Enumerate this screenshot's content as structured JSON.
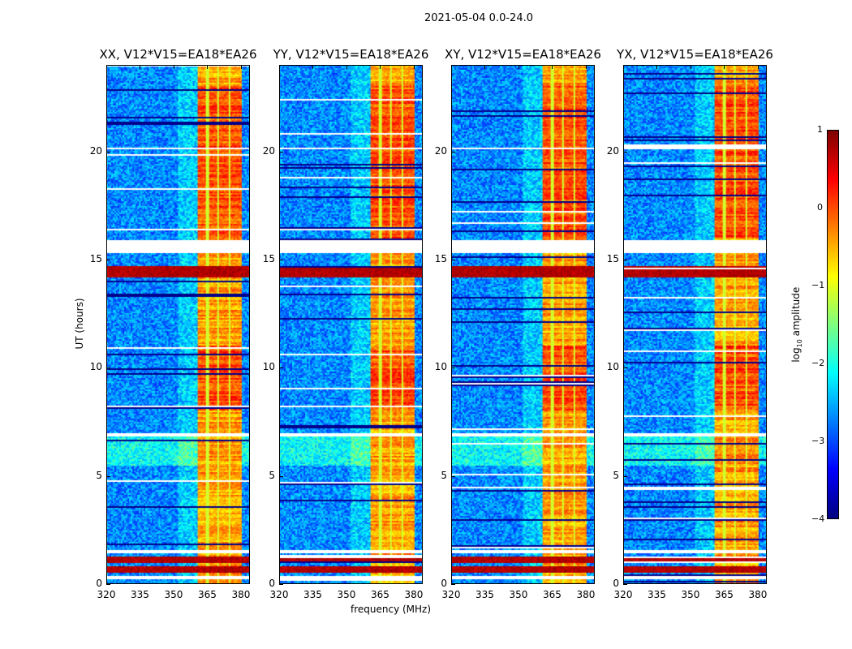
{
  "suptitle": "2021-05-04 0.0-24.0",
  "chart_data": {
    "type": "heatmap",
    "title": "2021-05-04 0.0-24.0",
    "xlabel": "frequency (MHz)",
    "ylabel": "UT (hours)",
    "xlim": [
      320,
      384
    ],
    "ylim": [
      0,
      24
    ],
    "xticks": [
      "320",
      "335",
      "350",
      "365",
      "380"
    ],
    "yticks": [
      "0",
      "5",
      "10",
      "15",
      "20"
    ],
    "panels": [
      {
        "title": "XX, V12*V15=EA18*EA26"
      },
      {
        "title": "YY, V12*V15=EA18*EA26"
      },
      {
        "title": "XY, V12*V15=EA18*EA26"
      },
      {
        "title": "YX, V12*V15=EA18*EA26"
      }
    ],
    "colorbar": {
      "label_prefix": "log",
      "label_sub": "10",
      "label_suffix": " amplitude",
      "range": [
        -4,
        1
      ],
      "ticks": [
        "1",
        "0",
        "−1",
        "−2",
        "−3",
        "−4"
      ],
      "colormap": "jet"
    },
    "rfi_band_mhz": [
      361,
      380
    ],
    "background_log_amplitude": -2.7,
    "rfi_log_amplitude": -0.4,
    "flagged_hours": [
      [
        15.3,
        15.9
      ],
      [
        1.45,
        1.6
      ],
      [
        0.25,
        0.35
      ],
      [
        6.85,
        6.95
      ],
      [
        20.1,
        20.2
      ]
    ],
    "strong_rfi_hours": [
      [
        14.15,
        14.7
      ],
      [
        0.5,
        0.8
      ],
      [
        1.0,
        1.3
      ]
    ]
  }
}
